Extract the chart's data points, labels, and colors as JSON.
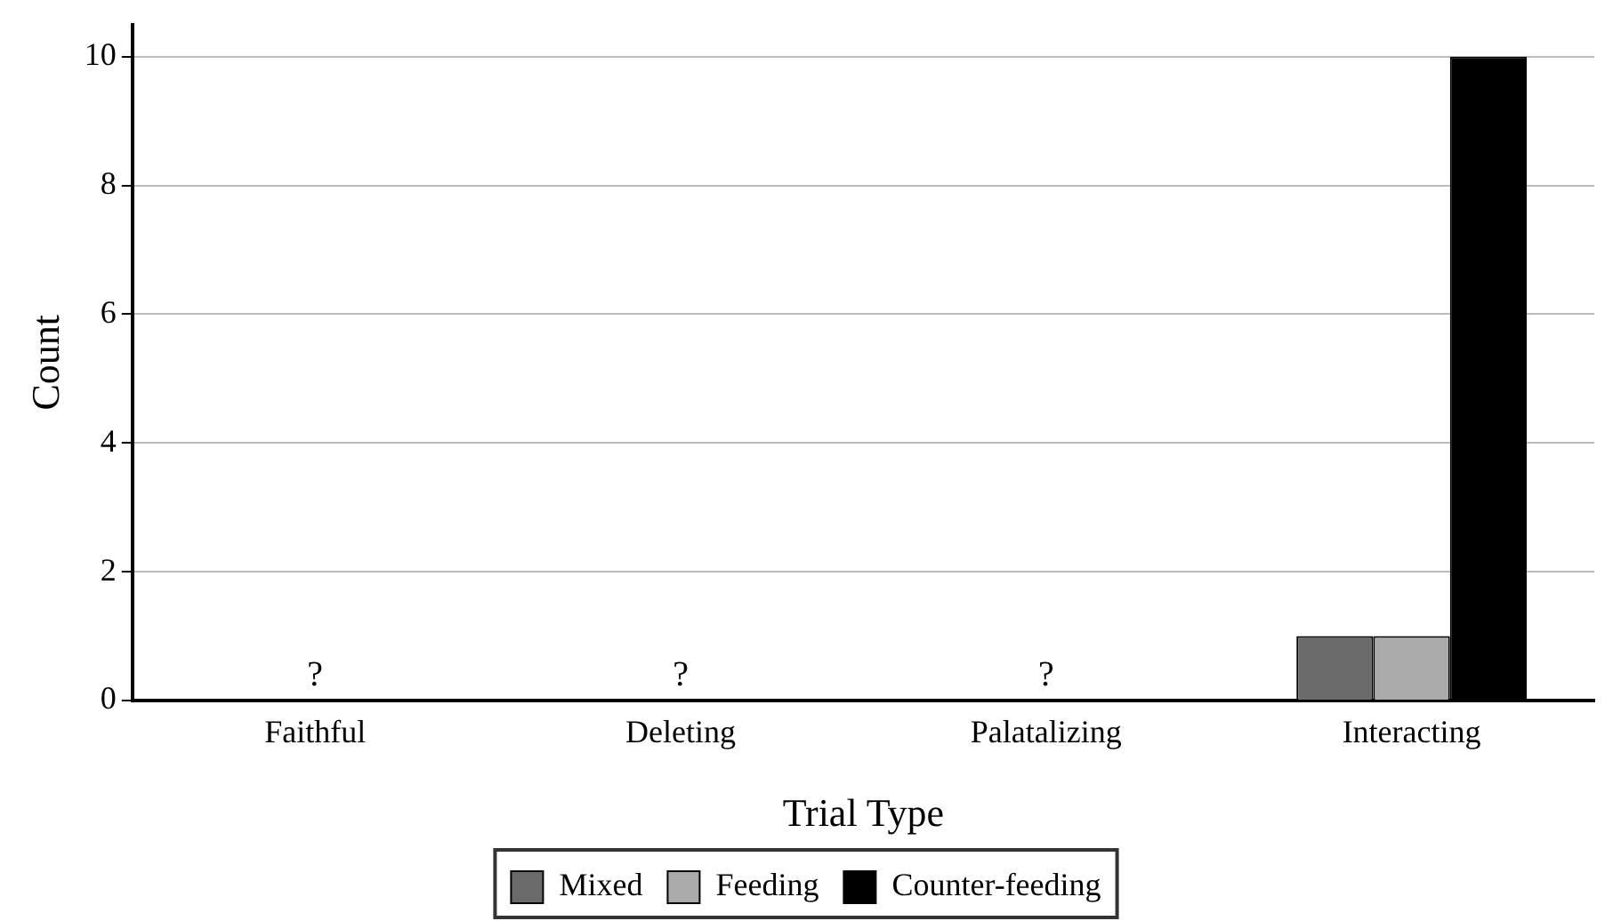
{
  "chart_data": {
    "type": "bar",
    "xlabel": "Trial Type",
    "ylabel": "Count",
    "categories": [
      "Faithful",
      "Deleting",
      "Palatalizing",
      "Interacting"
    ],
    "series": [
      {
        "name": "Mixed",
        "color": "#6b6b6b",
        "values": [
          null,
          null,
          null,
          1
        ]
      },
      {
        "name": "Feeding",
        "color": "#aaaaaa",
        "values": [
          null,
          null,
          null,
          1
        ]
      },
      {
        "name": "Counter-feeding",
        "color": "#000000",
        "values": [
          null,
          null,
          null,
          10
        ]
      }
    ],
    "ylim": [
      0,
      10.5
    ],
    "yticks": [
      0,
      2,
      4,
      6,
      8,
      10
    ],
    "grid": "y",
    "legend": "bottom",
    "annotations": [
      "?",
      "?",
      "?"
    ]
  }
}
